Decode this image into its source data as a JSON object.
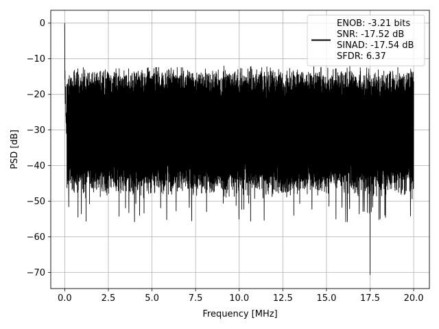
{
  "chart_data": {
    "type": "line",
    "xlabel": "Frequency [MHz]",
    "ylabel": "PSD [dB]",
    "xlim": [
      -0.8,
      20.9
    ],
    "ylim": [
      -74.5,
      3.6
    ],
    "xticks": [
      0.0,
      2.5,
      5.0,
      7.5,
      10.0,
      12.5,
      15.0,
      17.5,
      20.0
    ],
    "xtick_labels": [
      "0.0",
      "2.5",
      "5.0",
      "7.5",
      "10.0",
      "12.5",
      "15.0",
      "17.5",
      "20.0"
    ],
    "yticks": [
      0,
      -10,
      -20,
      -30,
      -40,
      -50,
      -60,
      -70
    ],
    "ytick_labels": [
      "0",
      "−10",
      "−20",
      "−30",
      "−40",
      "−50",
      "−60",
      "−70"
    ],
    "grid": true,
    "legend_position": "top-right",
    "series": [
      {
        "color": "#000000",
        "description": "dense noise-floor PSD trace",
        "x_range": [
          0,
          20
        ],
        "floor_band": [
          -42,
          -18
        ],
        "peak": {
          "x": 0.0,
          "y": 0.0
        },
        "minimum": {
          "x": 17.5,
          "y": -70.6
        },
        "legend_lines": [
          "ENOB: -3.21 bits",
          "SNR: -17.52 dB",
          "SINAD: -17.54 dB",
          "SFDR: 6.37"
        ]
      }
    ]
  }
}
